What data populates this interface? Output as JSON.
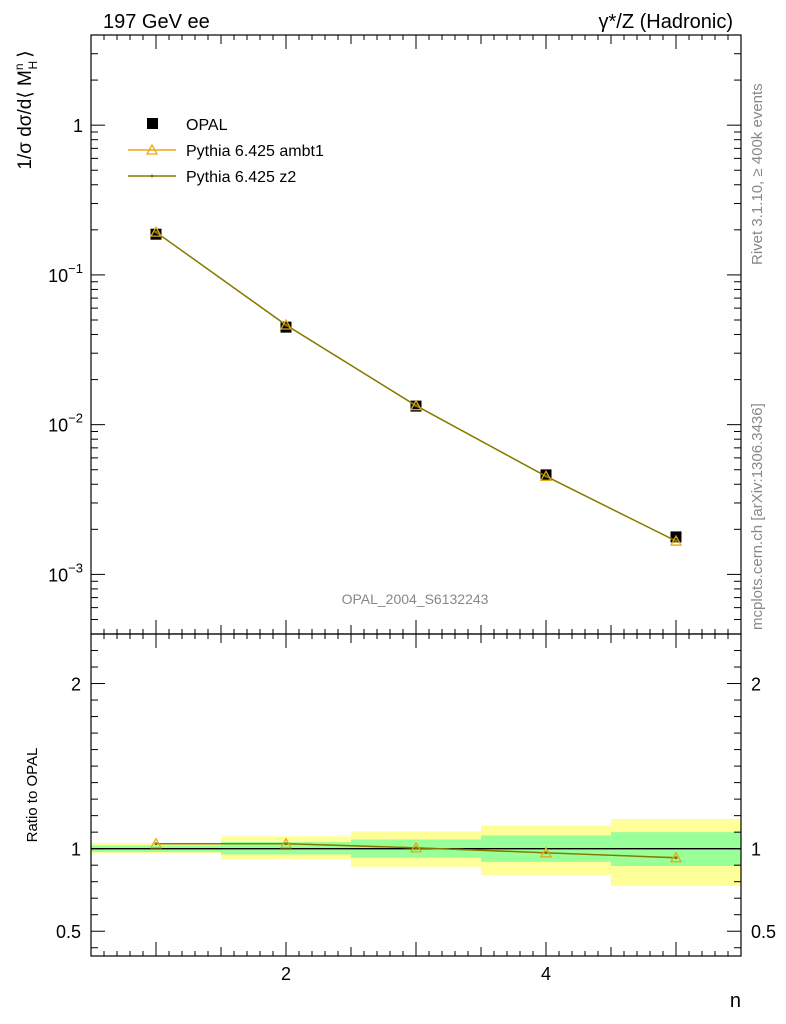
{
  "header": {
    "left": "197 GeV ee",
    "right_sym": "γ*/Z",
    "right_txt": " (Hadronic)"
  },
  "side_labels": {
    "rivet": "Rivet 3.1.10, ≥ 400k events",
    "mcplots": "mcplots.cern.ch [arXiv:1306.3436]"
  },
  "watermark": "OPAL_2004_S6132243",
  "legend": {
    "placement": "top-left",
    "entries": [
      "OPAL",
      "Pythia 6.425 ambt1",
      "Pythia 6.425 z2"
    ]
  },
  "colors": {
    "data": "#000000",
    "ambt1": "#e6a817",
    "z2": "#7f7a00",
    "band_inner": "#99ff99",
    "band_outer": "#ffff99"
  },
  "chart_data": [
    {
      "type": "scatter",
      "yscale": "log",
      "xlim": [
        0.5,
        5.5
      ],
      "ylim": [
        0.0004,
        4
      ],
      "ylabel_pre": "1/σ dσ/d⟨ M",
      "ylabel_sup": "n",
      "ylabel_sub": "H",
      "ylabel_post": "⟩",
      "ytick_labels": [
        {
          "value": 1,
          "base": "1",
          "exp": ""
        },
        {
          "value": 0.1,
          "base": "10",
          "exp": "−1"
        },
        {
          "value": 0.01,
          "base": "10",
          "exp": "−2"
        },
        {
          "value": 0.001,
          "base": "10",
          "exp": "−3"
        }
      ],
      "series": [
        {
          "name": "OPAL",
          "x": [
            1,
            2,
            3,
            4,
            5
          ],
          "y": [
            0.187,
            0.0448,
            0.0133,
            0.00462,
            0.00178
          ]
        },
        {
          "name": "Pythia 6.425 ambt1",
          "x": [
            1,
            2,
            3,
            4,
            5
          ],
          "y": [
            0.193,
            0.0463,
            0.0134,
            0.00452,
            0.00167
          ]
        },
        {
          "name": "Pythia 6.425 z2",
          "x": [
            1,
            2,
            3,
            4,
            5
          ],
          "y": [
            0.193,
            0.0463,
            0.0134,
            0.00452,
            0.00167
          ]
        }
      ]
    },
    {
      "type": "line",
      "xlim": [
        0.5,
        5.5
      ],
      "ylim": [
        0.35,
        2.3
      ],
      "xlabel": "n",
      "ylabel": "Ratio to OPAL",
      "xticks": [
        2,
        4
      ],
      "ytick_labels": [
        "0.5",
        "1",
        "2"
      ],
      "ytick_values": [
        0.5,
        1,
        2
      ],
      "bands": [
        {
          "x0": 0.5,
          "x1": 1.5,
          "inner": [
            0.98,
            1.02
          ],
          "outer": [
            0.97,
            1.035
          ]
        },
        {
          "x0": 1.5,
          "x1": 2.5,
          "inner": [
            0.965,
            1.04
          ],
          "outer": [
            0.935,
            1.075
          ]
        },
        {
          "x0": 2.5,
          "x1": 3.5,
          "inner": [
            0.945,
            1.055
          ],
          "outer": [
            0.89,
            1.105
          ]
        },
        {
          "x0": 3.5,
          "x1": 4.5,
          "inner": [
            0.92,
            1.08
          ],
          "outer": [
            0.84,
            1.14
          ]
        },
        {
          "x0": 4.5,
          "x1": 5.5,
          "inner": [
            0.895,
            1.1
          ],
          "outer": [
            0.775,
            1.18
          ]
        }
      ],
      "series": [
        {
          "name": "Pythia 6.425 ambt1",
          "x": [
            1,
            2,
            3,
            4,
            5
          ],
          "y": [
            1.03,
            1.03,
            1.005,
            0.975,
            0.945
          ]
        },
        {
          "name": "Pythia 6.425 z2",
          "x": [
            1,
            2,
            3,
            4,
            5
          ],
          "y": [
            1.03,
            1.03,
            1.005,
            0.975,
            0.945
          ]
        }
      ]
    }
  ]
}
